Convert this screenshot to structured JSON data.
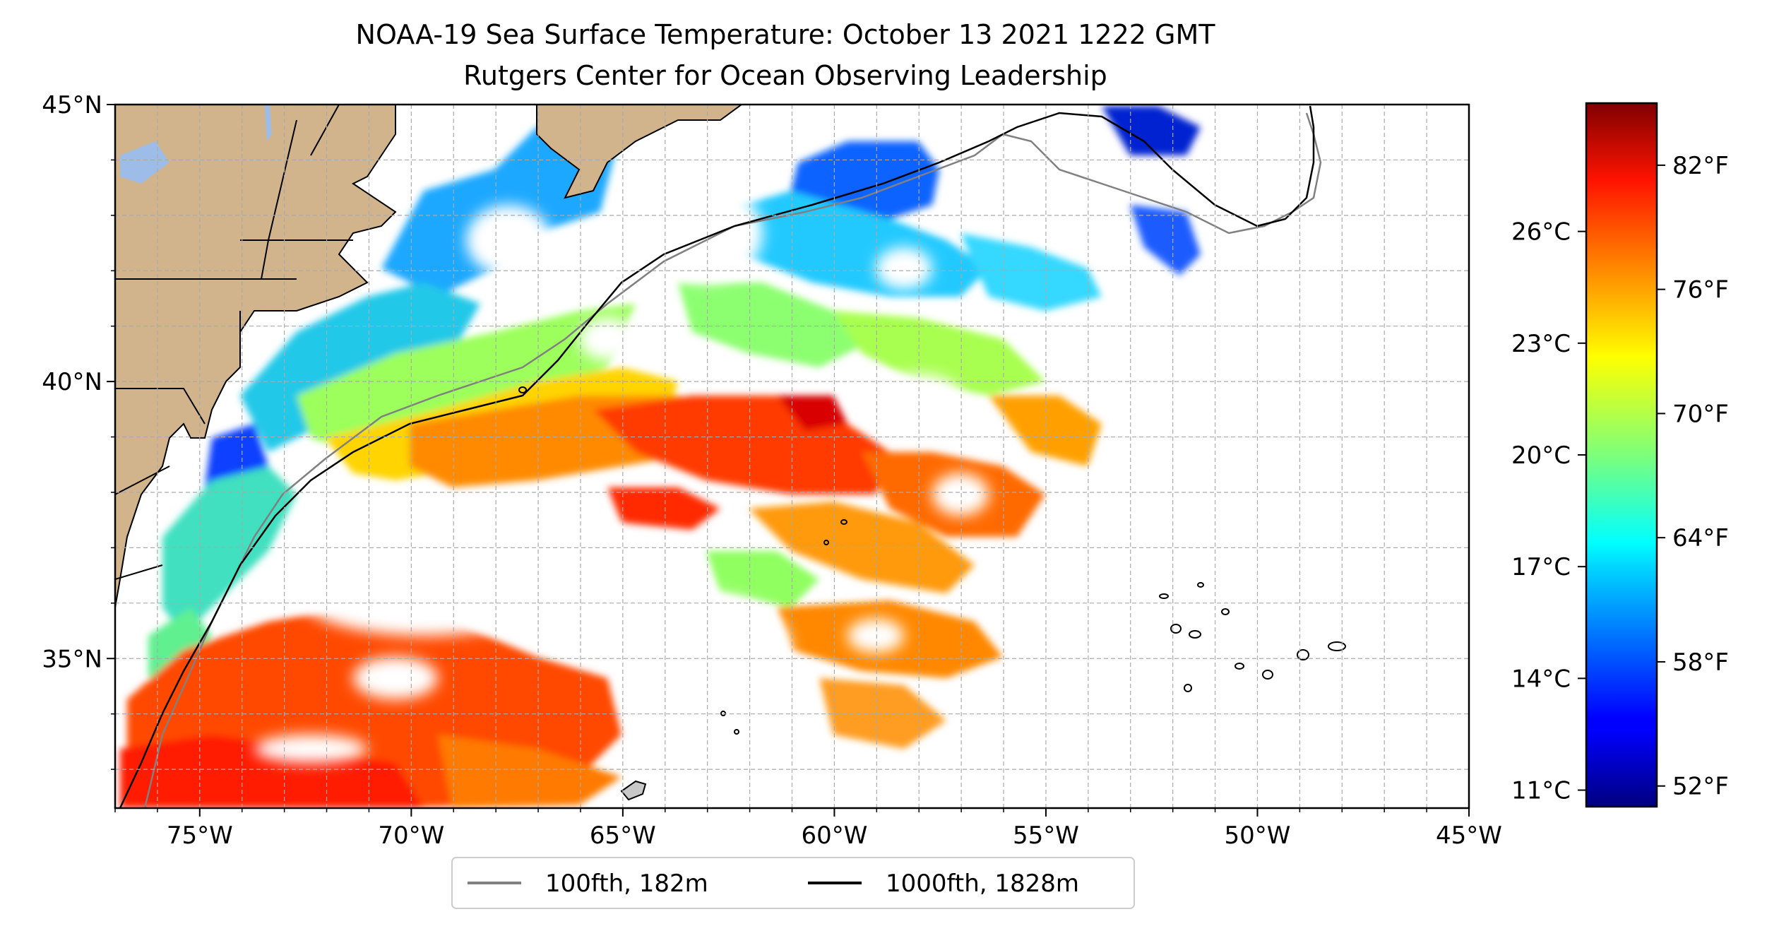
{
  "title_line1": "NOAA-19 Sea Surface Temperature: October 13 2021 1222 GMT",
  "title_line2": "Rutgers Center for Ocean Observing Leadership",
  "map": {
    "extent": {
      "lon": [
        -77,
        -45
      ],
      "lat": [
        32.3,
        45
      ]
    },
    "x_ticks": [
      {
        "value": -75,
        "label": "75°W"
      },
      {
        "value": -70,
        "label": "70°W"
      },
      {
        "value": -65,
        "label": "65°W"
      },
      {
        "value": -60,
        "label": "60°W"
      },
      {
        "value": -55,
        "label": "55°W"
      },
      {
        "value": -50,
        "label": "50°W"
      },
      {
        "value": -45,
        "label": "45°W"
      }
    ],
    "y_ticks": [
      {
        "value": 45,
        "label": "45°N"
      },
      {
        "value": 40,
        "label": "40°N"
      },
      {
        "value": 35,
        "label": "35°N"
      }
    ],
    "gridlines": "dashed, every 1 degree",
    "land_color": "#d2b48c",
    "lake_color": "#9dbde8",
    "colormap": "jet"
  },
  "legend": {
    "placement": "bottom-center below map",
    "items": [
      {
        "label": "100fth, 182m",
        "color": "#808080"
      },
      {
        "label": "1000fth, 1828m",
        "color": "#000000"
      }
    ]
  },
  "colorbar": {
    "colormap": "jet",
    "range_f": [
      51,
      85
    ],
    "celsius_ticks": [
      {
        "value_c": 26,
        "label": "26°C"
      },
      {
        "value_c": 23,
        "label": "23°C"
      },
      {
        "value_c": 20,
        "label": "20°C"
      },
      {
        "value_c": 17,
        "label": "17°C"
      },
      {
        "value_c": 14,
        "label": "14°C"
      },
      {
        "value_c": 11,
        "label": "11°C"
      }
    ],
    "fahrenheit_ticks": [
      {
        "value_f": 82,
        "label": "82°F"
      },
      {
        "value_f": 76,
        "label": "76°F"
      },
      {
        "value_f": 70,
        "label": "70°F"
      },
      {
        "value_f": 64,
        "label": "64°F"
      },
      {
        "value_f": 58,
        "label": "58°F"
      },
      {
        "value_f": 52,
        "label": "52°F"
      }
    ]
  }
}
